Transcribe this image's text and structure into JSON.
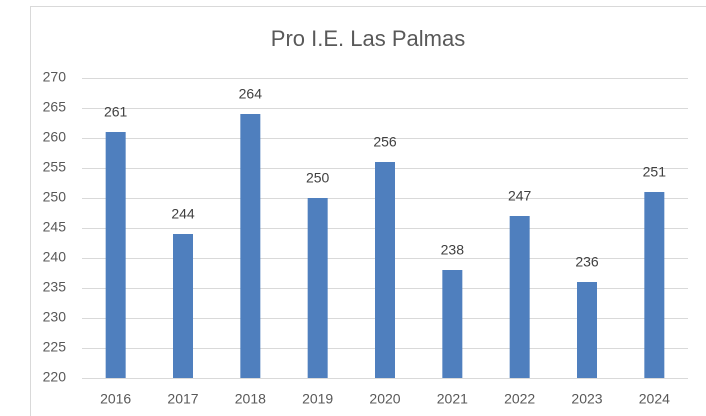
{
  "chart_data": {
    "type": "bar",
    "title": "Pro I.E. Las Palmas",
    "categories": [
      "2016",
      "2017",
      "2018",
      "2019",
      "2020",
      "2021",
      "2022",
      "2023",
      "2024"
    ],
    "values": [
      261,
      244,
      264,
      250,
      256,
      238,
      247,
      236,
      251
    ],
    "color": "#4f7fbe",
    "ylim": [
      220,
      270
    ],
    "yticks": [
      220,
      225,
      230,
      235,
      240,
      245,
      250,
      255,
      260,
      265,
      270
    ],
    "grid": true,
    "data_labels": true
  }
}
